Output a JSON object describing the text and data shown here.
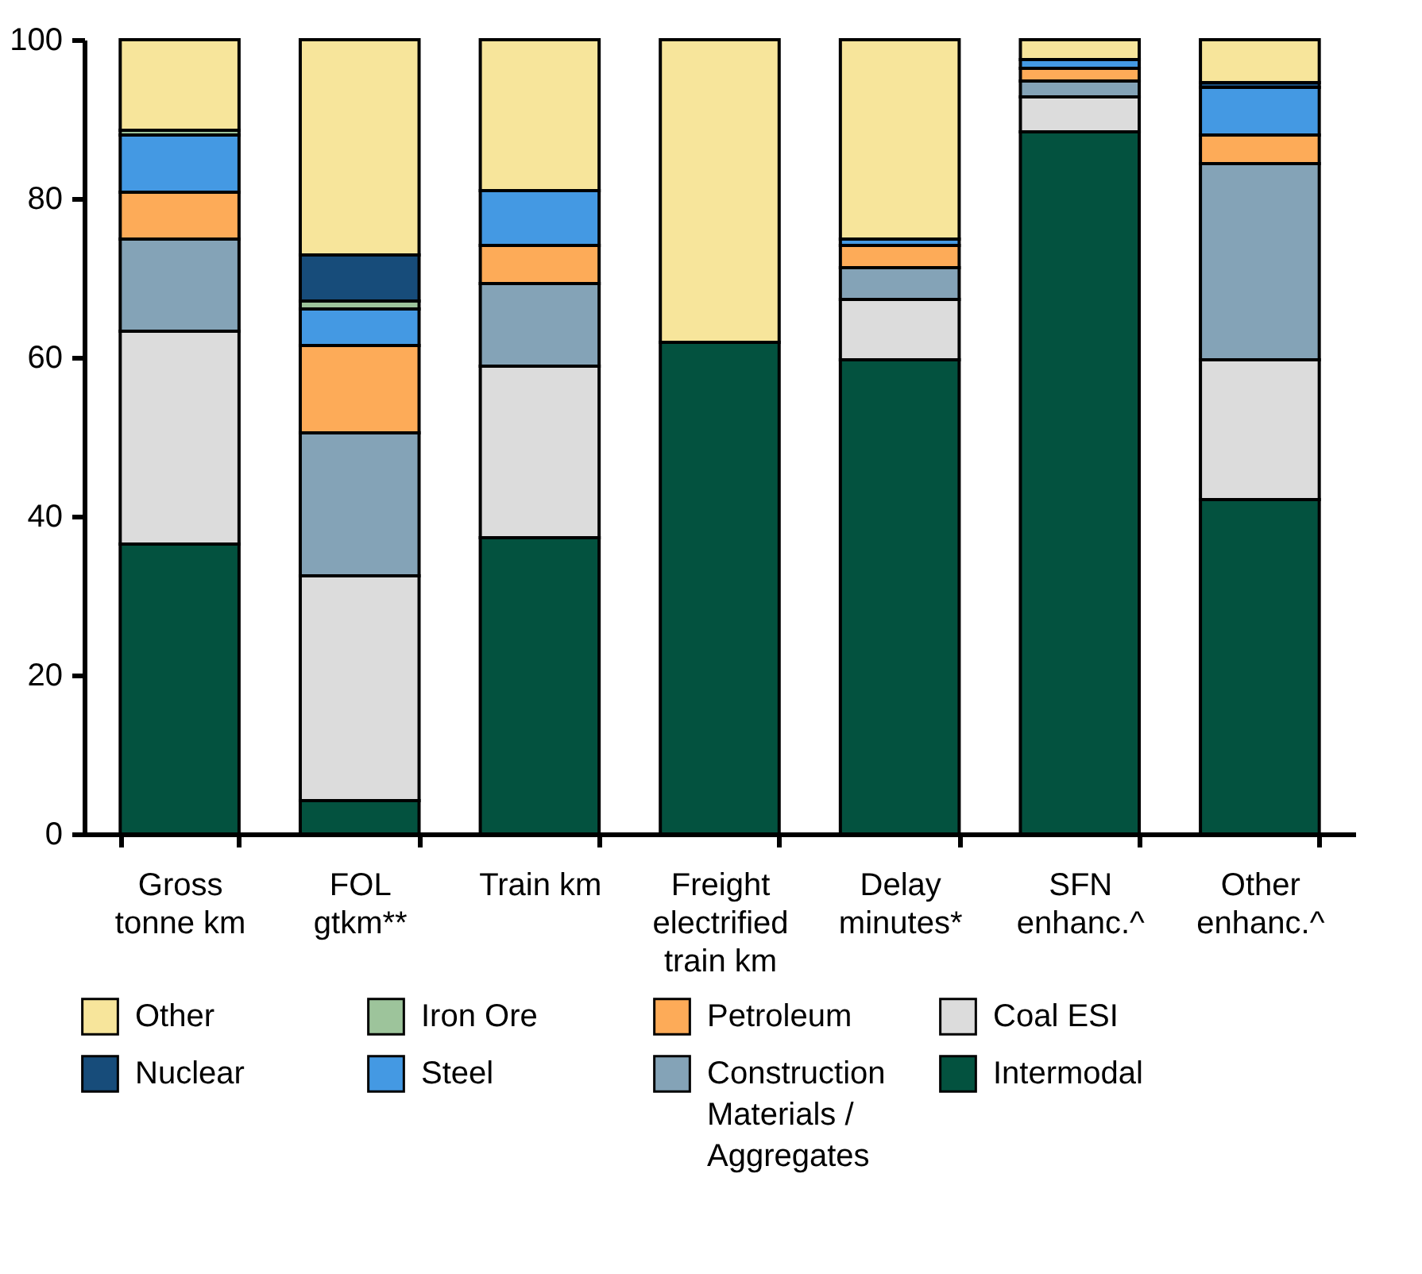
{
  "chart_data": {
    "type": "bar",
    "stacked": true,
    "categories": [
      "Gross tonne km",
      "FOL gtkm**",
      "Train km",
      "Freight electrified train km",
      "Delay minutes*",
      "SFN enhanc.^",
      "Other enhanc.^"
    ],
    "series": [
      {
        "name": "Intermodal",
        "color": "#03523f",
        "values": [
          36.5,
          4.2,
          37.3,
          61.9,
          59.7,
          88.4,
          42.1
        ]
      },
      {
        "name": "Coal ESI",
        "color": "#dcdcdc",
        "values": [
          26.8,
          28.3,
          21.6,
          0,
          7.6,
          4.4,
          17.6
        ]
      },
      {
        "name": "Construction Materials / Aggregates",
        "color": "#84a3b7",
        "values": [
          11.6,
          18.0,
          10.4,
          0,
          4.0,
          2.0,
          24.7
        ]
      },
      {
        "name": "Petroleum",
        "color": "#fdab58",
        "values": [
          5.9,
          11.0,
          4.8,
          0,
          2.8,
          1.6,
          3.6
        ]
      },
      {
        "name": "Steel",
        "color": "#4499e3",
        "values": [
          7.2,
          4.6,
          6.9,
          0,
          0.8,
          1.1,
          6.0
        ]
      },
      {
        "name": "Iron Ore",
        "color": "#9dc49b",
        "values": [
          0.6,
          1.0,
          0,
          0,
          0,
          0,
          0
        ]
      },
      {
        "name": "Nuclear",
        "color": "#174c7a",
        "values": [
          0,
          5.8,
          null,
          0,
          0,
          0,
          0.6
        ]
      },
      {
        "name": "Other",
        "color": "#f7e59b",
        "values": [
          11.4,
          27.1,
          19.0,
          38.1,
          25.1,
          2.5,
          5.4
        ]
      }
    ],
    "ylim": [
      0,
      100
    ],
    "yticks": [
      0,
      20,
      40,
      60,
      80,
      100
    ],
    "grid": false,
    "legend": "bottom"
  }
}
